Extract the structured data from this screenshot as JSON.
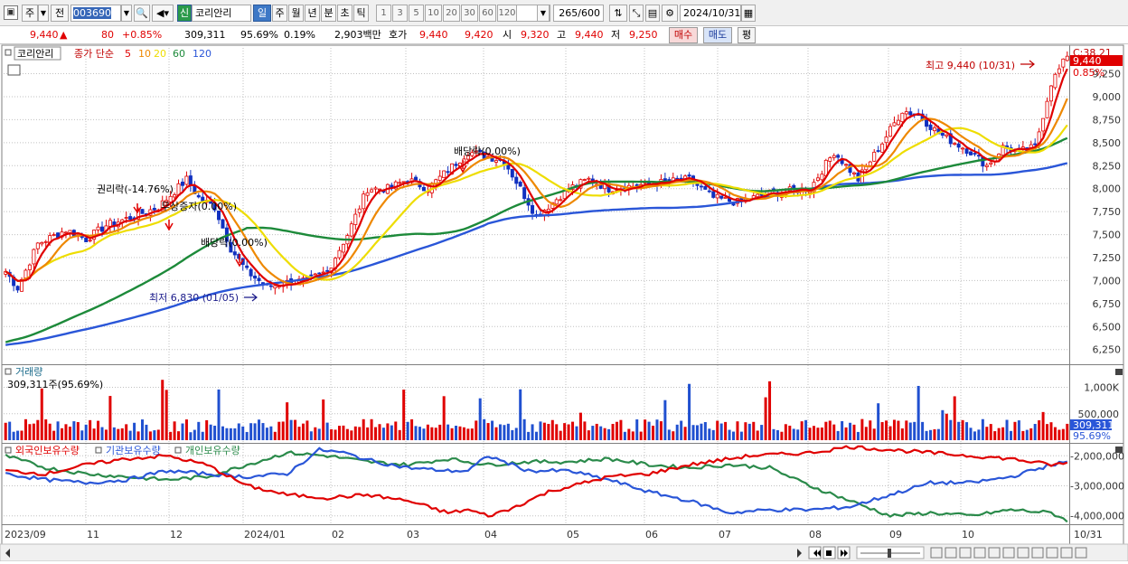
{
  "toolbar": {
    "market": "주",
    "prev": "전",
    "code": "003690",
    "name": "코리안리",
    "new_badge": "신",
    "periods": [
      "일",
      "주",
      "월",
      "년",
      "분",
      "초",
      "틱"
    ],
    "active_period": "일",
    "intervals": [
      "1",
      "3",
      "5",
      "10",
      "20",
      "30",
      "60",
      "120"
    ],
    "count": "265",
    "count_total": "/600",
    "date": "2024/10/31"
  },
  "quote": {
    "price": "9,440",
    "arrow": "▲",
    "change": "80",
    "change_pct": "+0.85%",
    "volume": "309,311",
    "volume_ratio": "95.69%",
    "turnover_pct": "0.19%",
    "amount": "2,903백만",
    "bid_label": "호가",
    "ask": "9,440",
    "bid": "9,420",
    "open_label": "시",
    "open": "9,320",
    "high_label": "고",
    "high": "9,440",
    "low_label": "저",
    "low": "9,250",
    "buy": "매수",
    "sell": "매도",
    "eval": "평"
  },
  "price_panel": {
    "name": "코리안리",
    "ma_label": "종가 단순",
    "ma_periods": [
      "5",
      "10",
      "20",
      "60",
      "120"
    ],
    "ma_colors": [
      "#e00000",
      "#ee8800",
      "#eedd00",
      "#1d8a3a",
      "#2a56d8"
    ],
    "current_price": "9,440",
    "current_pct": "0.85%",
    "top_right_label": "C:38.21",
    "annotations": {
      "rights": "권리락(-14.76%)",
      "capital": "무상증자(0.00%)",
      "dividend1": "배당락(0.00%)",
      "dividend2": "배당락(0.00%)",
      "high": "최고 9,440 (10/31)",
      "low": "최저 6,830 (01/05)"
    }
  },
  "volume_panel": {
    "title": "거래량",
    "value": "309,311주(95.69%)",
    "current": "309,311",
    "current_pct": "95.69%"
  },
  "flow_panel": {
    "legend": [
      "외국인보유수량",
      "기관보유수량",
      "개인보유수량"
    ],
    "colors": [
      "#e00000",
      "#2a56d8",
      "#2a8a4a"
    ]
  },
  "date_axis": [
    "2023/09",
    "11",
    "12",
    "2024/01",
    "02",
    "03",
    "04",
    "05",
    "06",
    "07",
    "08",
    "09",
    "10",
    "10/31"
  ],
  "chart_data": {
    "type": "line",
    "title": "코리안리 (003690) 일봉",
    "price_yaxis_ticks": [
      6250,
      6500,
      6750,
      7000,
      7250,
      7500,
      7750,
      8000,
      8250,
      8500,
      8750,
      9000,
      9250
    ],
    "ylim": [
      6100,
      9550
    ],
    "close_anchors": [
      [
        0,
        7100
      ],
      [
        3,
        6920
      ],
      [
        8,
        7400
      ],
      [
        15,
        7550
      ],
      [
        20,
        7450
      ],
      [
        25,
        7600
      ],
      [
        32,
        7700
      ],
      [
        38,
        7800
      ],
      [
        45,
        8100
      ],
      [
        48,
        7900
      ],
      [
        52,
        7800
      ],
      [
        56,
        7350
      ],
      [
        60,
        7100
      ],
      [
        65,
        6930
      ],
      [
        70,
        6980
      ],
      [
        75,
        7000
      ],
      [
        80,
        7100
      ],
      [
        85,
        7500
      ],
      [
        90,
        8000
      ],
      [
        95,
        8000
      ],
      [
        100,
        8100
      ],
      [
        105,
        8000
      ],
      [
        110,
        8200
      ],
      [
        115,
        8400
      ],
      [
        120,
        8350
      ],
      [
        124,
        8300
      ],
      [
        128,
        8000
      ],
      [
        132,
        7700
      ],
      [
        136,
        7850
      ],
      [
        140,
        8000
      ],
      [
        145,
        8100
      ],
      [
        150,
        8000
      ],
      [
        160,
        8050
      ],
      [
        170,
        8100
      ],
      [
        176,
        7900
      ],
      [
        182,
        7850
      ],
      [
        190,
        7950
      ],
      [
        200,
        8000
      ],
      [
        206,
        8400
      ],
      [
        212,
        8100
      ],
      [
        218,
        8500
      ],
      [
        223,
        8850
      ],
      [
        227,
        8800
      ],
      [
        232,
        8600
      ],
      [
        236,
        8500
      ],
      [
        240,
        8400
      ],
      [
        244,
        8250
      ],
      [
        248,
        8450
      ],
      [
        252,
        8400
      ],
      [
        256,
        8450
      ],
      [
        260,
        9150
      ],
      [
        264,
        9440
      ]
    ],
    "volume_ylabels": [
      "1,000K",
      "500,000"
    ],
    "flow_yaxis_ticks": [
      -2000000,
      -3000000,
      -4000000
    ],
    "flow_ylim": [
      -4250000,
      -1600000
    ],
    "foreign_anchors": [
      [
        0,
        -2500000
      ],
      [
        10,
        -2600000
      ],
      [
        20,
        -2300000
      ],
      [
        30,
        -2100000
      ],
      [
        40,
        -2000000
      ],
      [
        50,
        -2300000
      ],
      [
        60,
        -3000000
      ],
      [
        70,
        -3300000
      ],
      [
        80,
        -3400000
      ],
      [
        90,
        -3300000
      ],
      [
        100,
        -3500000
      ],
      [
        110,
        -3900000
      ],
      [
        115,
        -3800000
      ],
      [
        120,
        -4000000
      ],
      [
        125,
        -3800000
      ],
      [
        135,
        -3200000
      ],
      [
        150,
        -2700000
      ],
      [
        160,
        -2600000
      ],
      [
        170,
        -2300000
      ],
      [
        185,
        -2000000
      ],
      [
        200,
        -1900000
      ],
      [
        210,
        -1700000
      ],
      [
        220,
        -1800000
      ],
      [
        230,
        -1900000
      ],
      [
        240,
        -2000000
      ],
      [
        250,
        -2100000
      ],
      [
        260,
        -2300000
      ],
      [
        264,
        -2250000
      ]
    ],
    "inst_anchors": [
      [
        0,
        -2600000
      ],
      [
        10,
        -2800000
      ],
      [
        20,
        -2900000
      ],
      [
        30,
        -2800000
      ],
      [
        40,
        -2500000
      ],
      [
        50,
        -2600000
      ],
      [
        60,
        -2700000
      ],
      [
        70,
        -2600000
      ],
      [
        78,
        -1800000
      ],
      [
        84,
        -1900000
      ],
      [
        92,
        -2200000
      ],
      [
        100,
        -2400000
      ],
      [
        110,
        -2500000
      ],
      [
        115,
        -2500000
      ],
      [
        120,
        -2000000
      ],
      [
        130,
        -2500000
      ],
      [
        140,
        -2500000
      ],
      [
        150,
        -2800000
      ],
      [
        160,
        -3200000
      ],
      [
        170,
        -3500000
      ],
      [
        180,
        -3900000
      ],
      [
        190,
        -3800000
      ],
      [
        200,
        -3800000
      ],
      [
        210,
        -3700000
      ],
      [
        220,
        -3300000
      ],
      [
        230,
        -2900000
      ],
      [
        240,
        -2900000
      ],
      [
        250,
        -2700000
      ],
      [
        260,
        -2300000
      ],
      [
        264,
        -2200000
      ]
    ],
    "indiv_anchors": [
      [
        0,
        -2000000
      ],
      [
        10,
        -2400000
      ],
      [
        20,
        -2600000
      ],
      [
        30,
        -2700000
      ],
      [
        40,
        -2800000
      ],
      [
        50,
        -2700000
      ],
      [
        60,
        -2300000
      ],
      [
        70,
        -1900000
      ],
      [
        80,
        -2000000
      ],
      [
        90,
        -2200000
      ],
      [
        100,
        -2300000
      ],
      [
        110,
        -2100000
      ],
      [
        120,
        -2300000
      ],
      [
        130,
        -2200000
      ],
      [
        140,
        -2200000
      ],
      [
        150,
        -2100000
      ],
      [
        160,
        -2300000
      ],
      [
        170,
        -2400000
      ],
      [
        180,
        -2300000
      ],
      [
        190,
        -2400000
      ],
      [
        200,
        -3000000
      ],
      [
        210,
        -3500000
      ],
      [
        220,
        -4000000
      ],
      [
        230,
        -3900000
      ],
      [
        240,
        -4000000
      ],
      [
        250,
        -3800000
      ],
      [
        260,
        -3900000
      ],
      [
        264,
        -4150000
      ]
    ]
  }
}
